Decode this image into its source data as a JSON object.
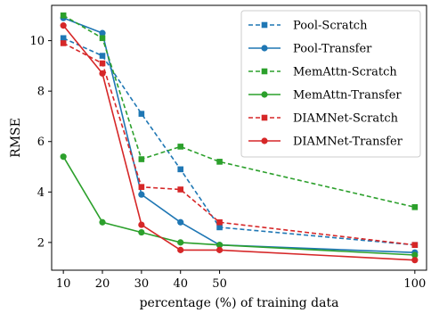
{
  "chart_data": {
    "type": "line",
    "xlabel": "percentage (%) of training data",
    "ylabel": "RMSE",
    "x": [
      10,
      20,
      30,
      40,
      50,
      100
    ],
    "x_ticks": [
      10,
      20,
      30,
      40,
      50,
      100
    ],
    "y_ticks": [
      2,
      4,
      6,
      8,
      10
    ],
    "xlim": [
      7,
      103
    ],
    "ylim": [
      0.9,
      11.4
    ],
    "grid": false,
    "legend_position": "top-right",
    "series": [
      {
        "name": "Pool-Scratch",
        "color": "#1f77b4",
        "dashed": true,
        "marker": "square",
        "values": [
          10.1,
          9.4,
          7.1,
          4.9,
          2.6,
          1.9
        ]
      },
      {
        "name": "Pool-Transfer",
        "color": "#1f77b4",
        "dashed": false,
        "marker": "circle",
        "values": [
          10.9,
          10.3,
          3.9,
          2.8,
          1.9,
          1.6
        ]
      },
      {
        "name": "MemAttn-Scratch",
        "color": "#2ca02c",
        "dashed": true,
        "marker": "square",
        "values": [
          11.0,
          10.1,
          5.3,
          5.8,
          5.2,
          3.4
        ]
      },
      {
        "name": "MemAttn-Transfer",
        "color": "#2ca02c",
        "dashed": false,
        "marker": "circle",
        "values": [
          5.4,
          2.8,
          2.4,
          2.0,
          1.9,
          1.5
        ]
      },
      {
        "name": "DIAMNet-Scratch",
        "color": "#d62728",
        "dashed": true,
        "marker": "square",
        "values": [
          9.9,
          9.1,
          4.2,
          4.1,
          2.8,
          1.9
        ]
      },
      {
        "name": "DIAMNet-Transfer",
        "color": "#d62728",
        "dashed": false,
        "marker": "circle",
        "values": [
          10.6,
          8.7,
          2.7,
          1.7,
          1.7,
          1.3
        ]
      }
    ]
  }
}
